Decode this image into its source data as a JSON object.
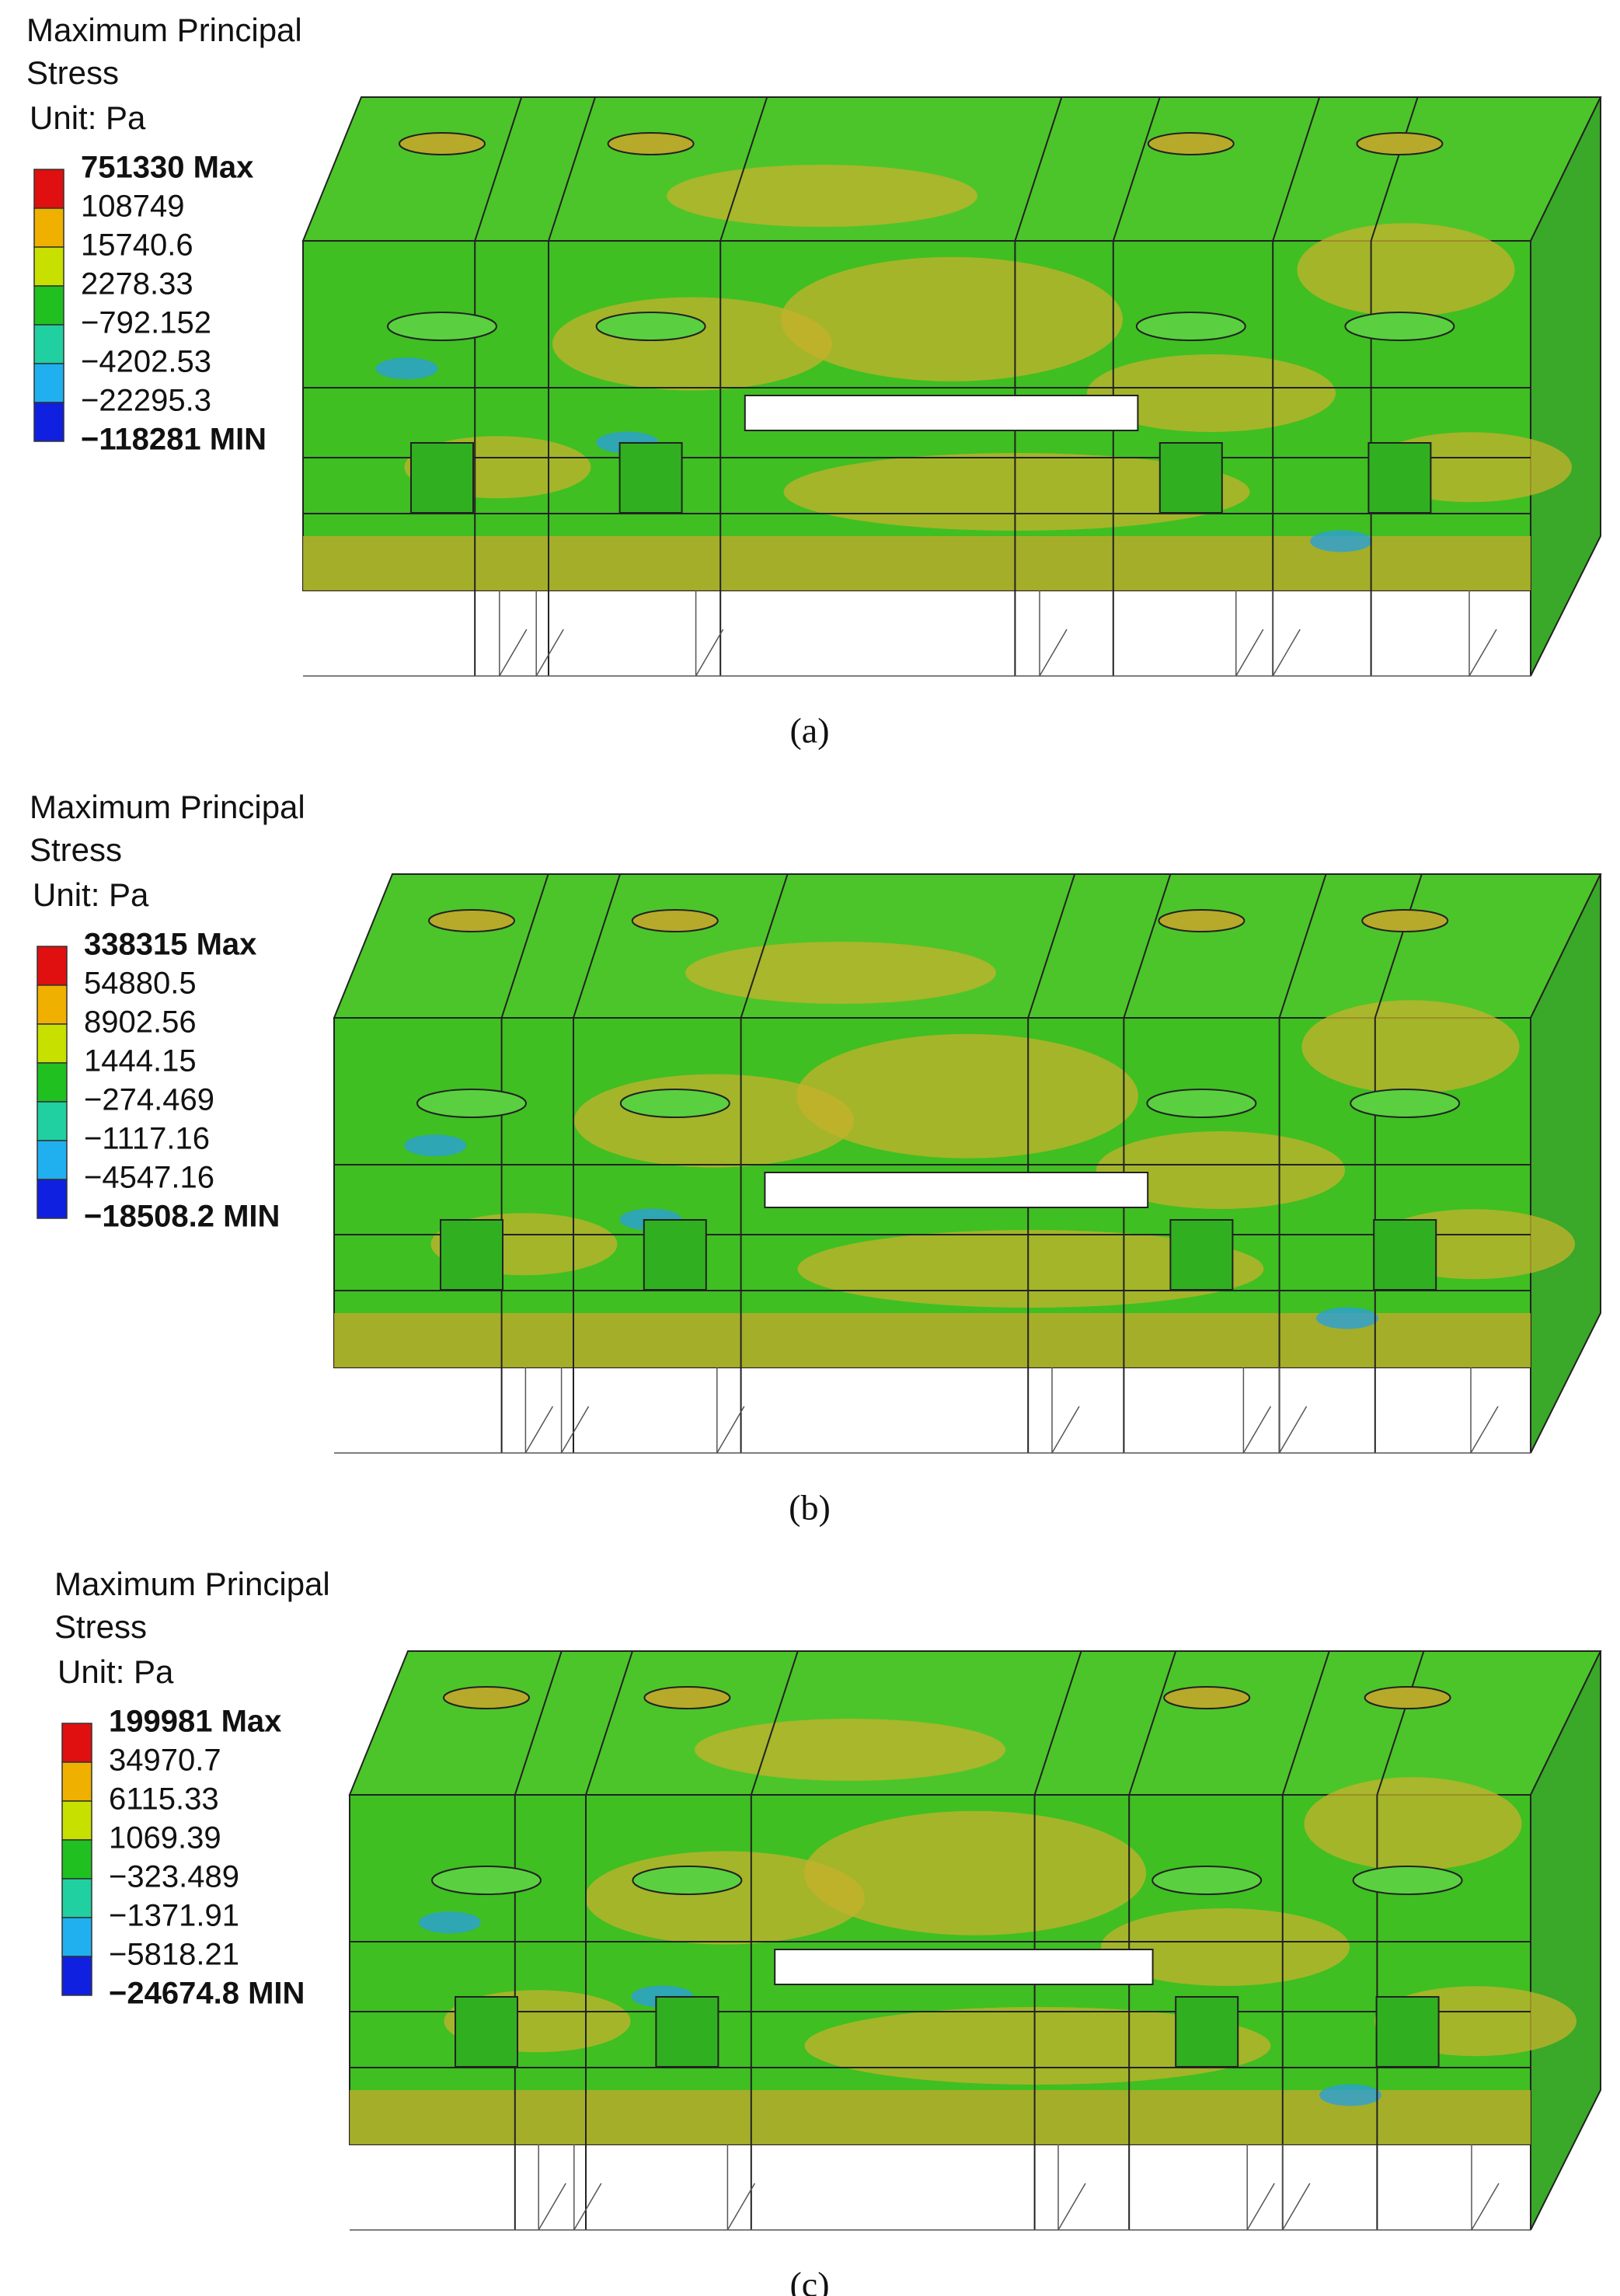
{
  "panels": [
    {
      "legend": {
        "title": [
          "Maximum Principal",
          "Stress"
        ],
        "unit": "Unit: Pa",
        "labels": [
          "751330 Max",
          "108749",
          "15740.6",
          "2278.33",
          "−792.152",
          "−4202.53",
          "−22295.3",
          "−118281 MIN"
        ]
      },
      "caption": "(a)"
    },
    {
      "legend": {
        "title": [
          "Maximum Principal",
          "Stress"
        ],
        "unit": "Unit: Pa",
        "labels": [
          "338315 Max",
          "54880.5",
          "8902.56",
          "1444.15",
          "−274.469",
          "−1117.16",
          "−4547.16",
          "−18508.2 MIN"
        ]
      },
      "caption": "(b)"
    },
    {
      "legend": {
        "title": [
          "Maximum Principal",
          "Stress"
        ],
        "unit": "Unit: Pa",
        "labels": [
          "199981 Max",
          "34970.7",
          "6115.33",
          "1069.39",
          "−323.489",
          "−1371.91",
          "−5818.21",
          "−24674.8 MIN"
        ]
      },
      "caption": "(c)"
    }
  ]
}
